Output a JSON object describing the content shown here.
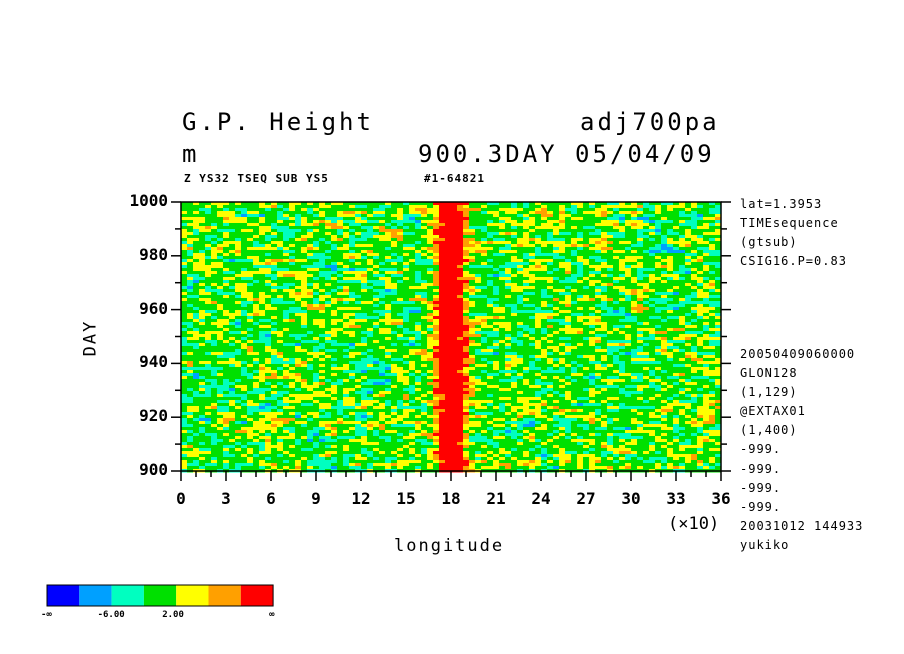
{
  "header": {
    "title_left": "G.P. Height",
    "title_right": "adj700pa",
    "unit": "m",
    "time_info": "900.3DAY 05/04/09",
    "sub_left": "Z YS32 TSEQ SUB YS5",
    "sub_right": "#1-64821"
  },
  "side_info_top": [
    "lat=1.3953",
    "TIMEsequence",
    "(gtsub)",
    "CSIG16.P=0.83"
  ],
  "side_info_bottom": [
    "20050409060000",
    "GLON128",
    "(1,129)",
    "@EXTAX01",
    "(1,400)",
    "-999.",
    "-999.",
    "-999.",
    "-999.",
    "20031012 144933",
    "yukiko"
  ],
  "legend": {
    "colors": [
      "#0000ff",
      "#00a0ff",
      "#00ffc0",
      "#00e000",
      "#ffff00",
      "#ffa000",
      "#ff0000"
    ],
    "labels": [
      "-∞",
      "-6.00",
      "2.00",
      "∞"
    ]
  },
  "chart_data": {
    "type": "heatmap",
    "xlabel": "longitude",
    "ylabel": "DAY",
    "x_multiplier": "(×10)",
    "x_ticks": [
      "0",
      "3",
      "6",
      "9",
      "12",
      "15",
      "18",
      "21",
      "24",
      "27",
      "30",
      "33",
      "36"
    ],
    "y_ticks": [
      "900",
      "920",
      "940",
      "960",
      "980",
      "1000"
    ],
    "xlim": [
      0,
      36
    ],
    "ylim": [
      900,
      1000
    ],
    "feature": "persistent high-value band near longitude 18 (×10) across all days"
  }
}
